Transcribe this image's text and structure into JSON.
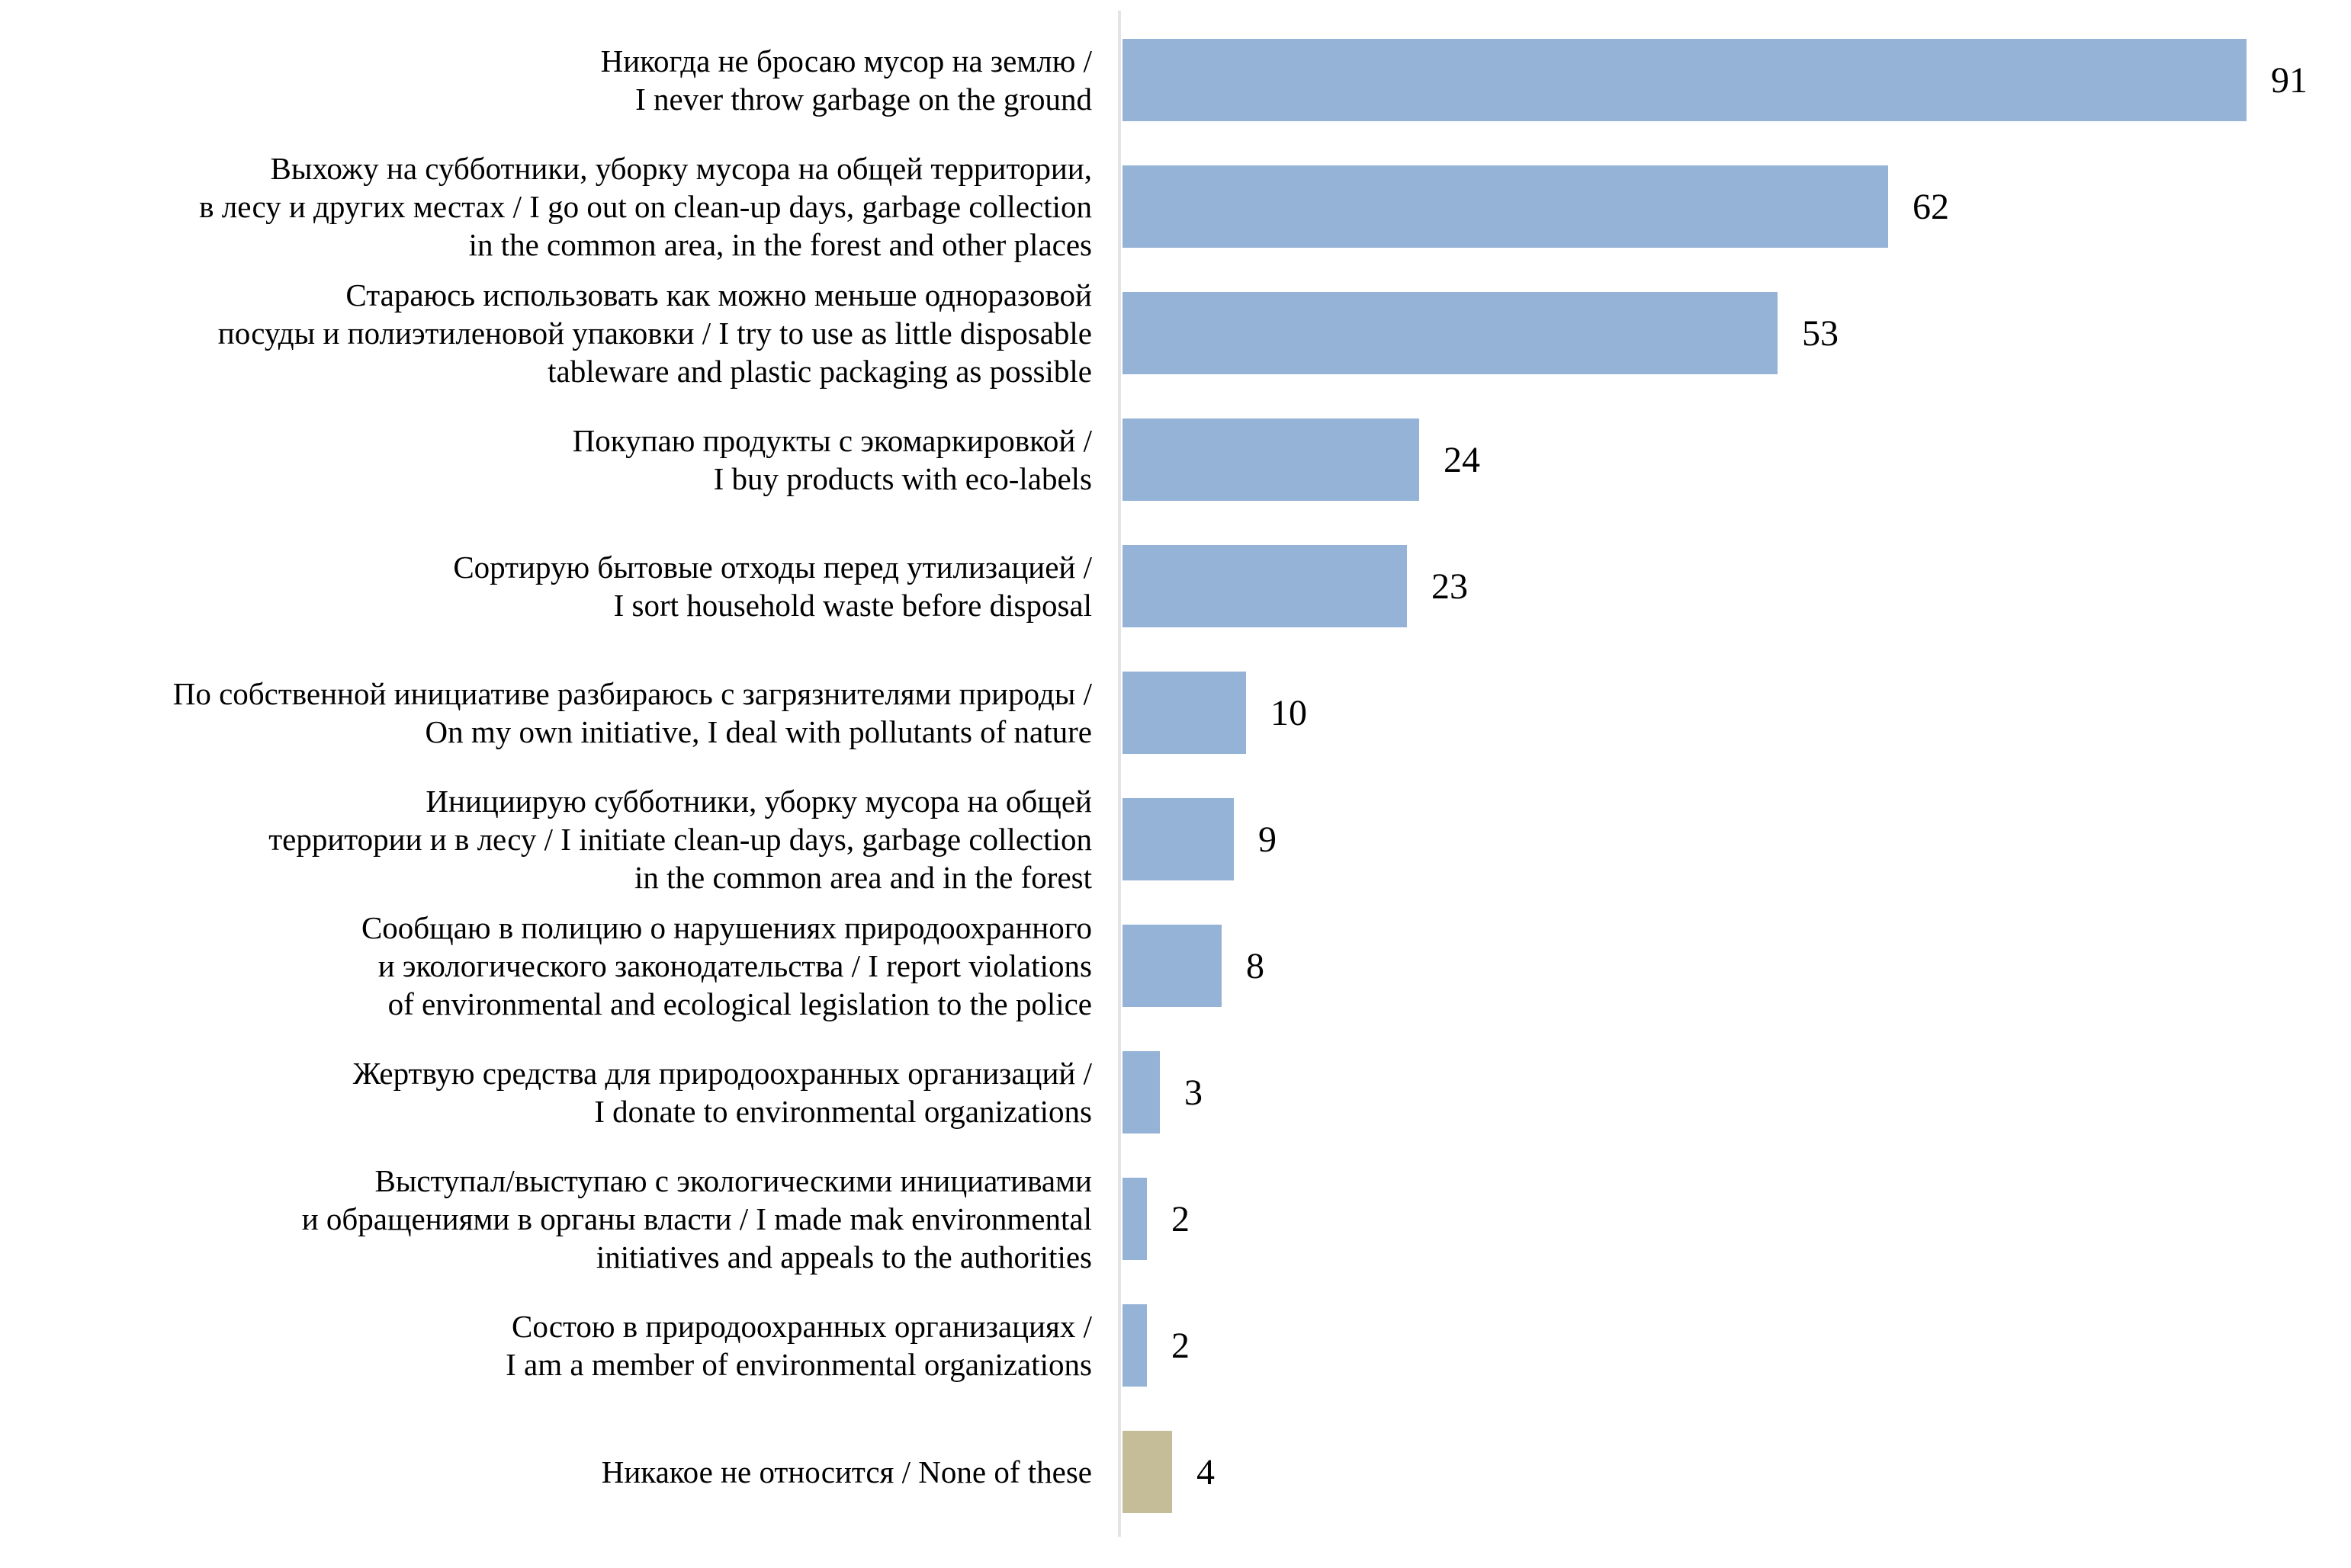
{
  "page": {
    "background_color": "#FFFFFF"
  },
  "chart": {
    "axis_line_color": "#E4E4E4",
    "text_color": "#000000",
    "default_bar_color": "#95B3D7",
    "none_option_bar_color": "#C4BD97"
  },
  "chart_data": {
    "type": "bar",
    "orientation": "horizontal",
    "title": "",
    "xlabel": "",
    "ylabel": "",
    "gridlines": false,
    "legend": false,
    "value_axis_visible": false,
    "data_labels_position": "outside-end",
    "categories": [
      "Никогда не бросаю мусор на землю /\nI never throw garbage on the ground",
      "Выхожу на субботники, уборку мусора на общей территории,\nв лесу и других местах / I go out on clean-up days, garbage collection\nin the common area, in the forest and other places",
      "Стараюсь использовать как можно меньше одноразовой\nпосуды и полиэтиленовой упаковки / I try to use as little disposable\ntableware and plastic packaging as possible",
      "Покупаю продукты с экомаркировкой /\nI buy products with eco-labels",
      "Сортирую бытовые отходы перед утилизацией /\nI sort household waste before disposal",
      "По собственной инициативе разбираюсь с загрязнителями природы /\nOn my own initiative, I deal with pollutants of nature",
      "Инициирую субботники, уборку мусора на общей\nтерритории и в лесу / I initiate clean-up days, garbage collection\nin the common area and in the forest",
      "Сообщаю в полицию о нарушениях природоохранного\nи экологического законодательства / I report violations\nof environmental and ecological legislation to the police",
      "Жертвую средства для природоохранных организаций /\nI donate to environmental organizations",
      "Выступал/выступаю с экологическими инициативами\nи обращениями в органы власти / I made mak environmental\ninitiatives and appeals to the authorities",
      "Состою в природоохранных организациях /\nI am a member of environmental organizations",
      "Никакое не относится / None of these"
    ],
    "values": [
      91,
      62,
      53,
      24,
      23,
      10,
      9,
      8,
      3,
      2,
      2,
      4
    ],
    "bar_colors": [
      "#95B3D7",
      "#95B3D7",
      "#95B3D7",
      "#95B3D7",
      "#95B3D7",
      "#95B3D7",
      "#95B3D7",
      "#95B3D7",
      "#95B3D7",
      "#95B3D7",
      "#95B3D7",
      "#C4BD97"
    ]
  }
}
